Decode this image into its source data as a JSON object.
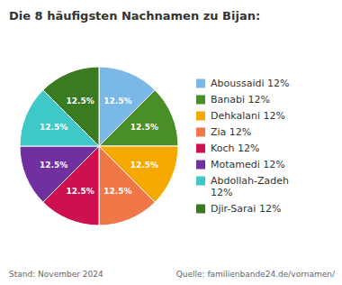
{
  "chart_data": {
    "type": "pie",
    "title": "Die 8 häufigsten Nachnamen zu Bijan:",
    "categories": [
      "Aboussaidi 12%",
      "Banabi 12%",
      "Dehkalani 12%",
      "Zia 12%",
      "Koch 12%",
      "Motamedi 12%",
      "Abdollah-Zadeh\n12%",
      "Djir-Sarai 12%"
    ],
    "values": [
      12.5,
      12.5,
      12.5,
      12.5,
      12.5,
      12.5,
      12.5,
      12.5
    ],
    "value_labels": [
      "12.5%",
      "12.5%",
      "12.5%",
      "12.5%",
      "12.5%",
      "12.5%",
      "12.5%",
      "12.5%"
    ],
    "data_labels": true,
    "colors": [
      "#7ab8e8",
      "#4a8e28",
      "#f5a800",
      "#f07848",
      "#cc1050",
      "#7030a0",
      "#3ec8c8",
      "#3a7a20"
    ],
    "legend": "right",
    "annotations": [
      "Stand: November 2024",
      "Quelle: familienbande24.de/vornamen/"
    ]
  }
}
